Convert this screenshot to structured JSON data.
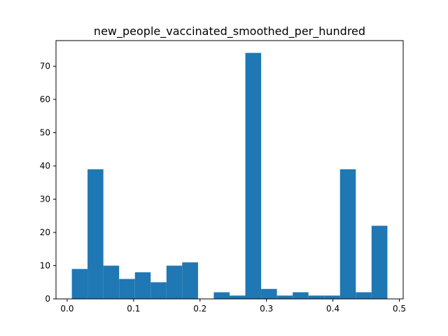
{
  "chart_data": {
    "type": "bar",
    "title": "new_people_vaccinated_smoothed_per_hundred",
    "xlabel": "",
    "ylabel": "",
    "bar_color": "#1f77b4",
    "bins": [
      {
        "x0": 0.007,
        "x1": 0.0307,
        "count": 9
      },
      {
        "x0": 0.0307,
        "x1": 0.0545,
        "count": 39
      },
      {
        "x0": 0.0545,
        "x1": 0.0782,
        "count": 10
      },
      {
        "x0": 0.0782,
        "x1": 0.102,
        "count": 6
      },
      {
        "x0": 0.102,
        "x1": 0.1257,
        "count": 8
      },
      {
        "x0": 0.1257,
        "x1": 0.1495,
        "count": 5
      },
      {
        "x0": 0.1495,
        "x1": 0.1732,
        "count": 10
      },
      {
        "x0": 0.1732,
        "x1": 0.197,
        "count": 11
      },
      {
        "x0": 0.197,
        "x1": 0.2207,
        "count": 0
      },
      {
        "x0": 0.2207,
        "x1": 0.2445,
        "count": 2
      },
      {
        "x0": 0.2445,
        "x1": 0.2682,
        "count": 1
      },
      {
        "x0": 0.2682,
        "x1": 0.292,
        "count": 74
      },
      {
        "x0": 0.292,
        "x1": 0.3157,
        "count": 3
      },
      {
        "x0": 0.3157,
        "x1": 0.3395,
        "count": 1
      },
      {
        "x0": 0.3395,
        "x1": 0.3632,
        "count": 2
      },
      {
        "x0": 0.3632,
        "x1": 0.387,
        "count": 1
      },
      {
        "x0": 0.387,
        "x1": 0.4107,
        "count": 1
      },
      {
        "x0": 0.4107,
        "x1": 0.4345,
        "count": 39
      },
      {
        "x0": 0.4345,
        "x1": 0.4582,
        "count": 2
      },
      {
        "x0": 0.4582,
        "x1": 0.482,
        "count": 22
      }
    ],
    "xlim": [
      -0.0168,
      0.5058
    ],
    "ylim": [
      0,
      77.7
    ],
    "xticks": [
      0.0,
      0.1,
      0.2,
      0.3,
      0.4,
      0.5
    ],
    "xtick_labels": [
      "0.0",
      "0.1",
      "0.2",
      "0.3",
      "0.4",
      "0.5"
    ],
    "yticks": [
      0,
      10,
      20,
      30,
      40,
      50,
      60,
      70
    ],
    "ytick_labels": [
      "0",
      "10",
      "20",
      "30",
      "40",
      "50",
      "60",
      "70"
    ],
    "grid": false,
    "legend": "none"
  }
}
